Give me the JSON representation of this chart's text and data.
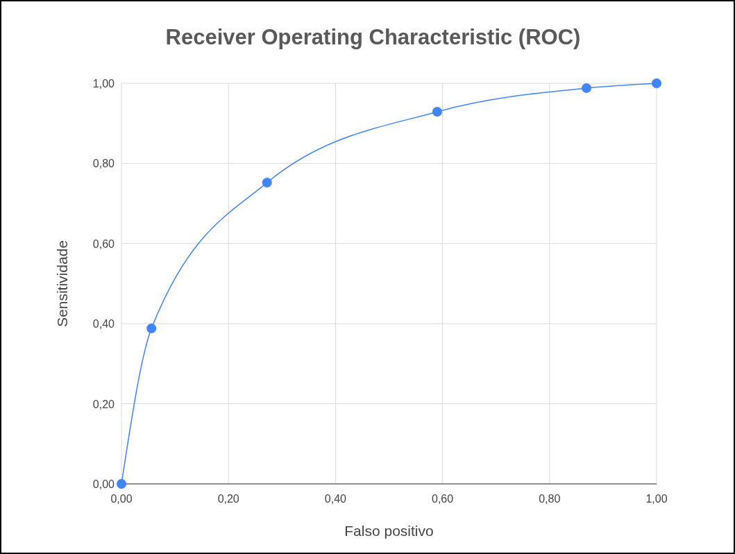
{
  "chart_data": {
    "type": "line",
    "title": "Receiver Operating Characteristic (ROC)",
    "xlabel": "Falso positivo",
    "ylabel": "Sensitividade",
    "x": [
      0,
      0.056,
      0.272,
      0.59,
      0.869,
      1
    ],
    "series": [
      {
        "color": "#4285f4",
        "values": [
          0,
          0.388,
          0.752,
          0.929,
          0.988,
          1
        ]
      }
    ],
    "xlim": [
      0,
      1
    ],
    "ylim": [
      0,
      1
    ],
    "xticks": [
      {
        "value": 0,
        "label": "0,00"
      },
      {
        "value": 0.2,
        "label": "0,20"
      },
      {
        "value": 0.4,
        "label": "0,40"
      },
      {
        "value": 0.6,
        "label": "0,60"
      },
      {
        "value": 0.8,
        "label": "0,80"
      },
      {
        "value": 1,
        "label": "1,00"
      }
    ],
    "yticks": [
      {
        "value": 0,
        "label": "0,00"
      },
      {
        "value": 0.2,
        "label": "0,20"
      },
      {
        "value": 0.4,
        "label": "0,40"
      },
      {
        "value": 0.6,
        "label": "0,60"
      },
      {
        "value": 0.8,
        "label": "0,80"
      },
      {
        "value": 1,
        "label": "1,00"
      }
    ],
    "grid": true,
    "marker": "circle",
    "line_style": "solid"
  }
}
